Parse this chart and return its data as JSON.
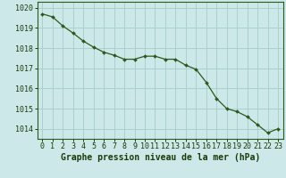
{
  "hours": [
    0,
    1,
    2,
    3,
    4,
    5,
    6,
    7,
    8,
    9,
    10,
    11,
    12,
    13,
    14,
    15,
    16,
    17,
    18,
    19,
    20,
    21,
    22,
    23
  ],
  "pressure": [
    1019.7,
    1019.55,
    1019.1,
    1018.75,
    1018.35,
    1018.05,
    1017.8,
    1017.65,
    1017.45,
    1017.45,
    1017.6,
    1017.6,
    1017.45,
    1017.45,
    1017.15,
    1016.95,
    1016.3,
    1015.5,
    1015.0,
    1014.85,
    1014.6,
    1014.2,
    1013.8,
    1014.0
  ],
  "line_color": "#2d5a1b",
  "marker_color": "#2d5a1b",
  "bg_color": "#cce8e8",
  "grid_color": "#aad0d0",
  "xlabel": "Graphe pression niveau de la mer (hPa)",
  "xlabel_color": "#1a3a0a",
  "tick_color": "#1a3a0a",
  "ylim_min": 1013.5,
  "ylim_max": 1020.3,
  "yticks": [
    1014,
    1015,
    1016,
    1017,
    1018,
    1019,
    1020
  ],
  "xticks": [
    0,
    1,
    2,
    3,
    4,
    5,
    6,
    7,
    8,
    9,
    10,
    11,
    12,
    13,
    14,
    15,
    16,
    17,
    18,
    19,
    20,
    21,
    22,
    23
  ],
  "font_family": "monospace",
  "xlabel_fontsize": 7.0,
  "tick_fontsize": 6.0
}
